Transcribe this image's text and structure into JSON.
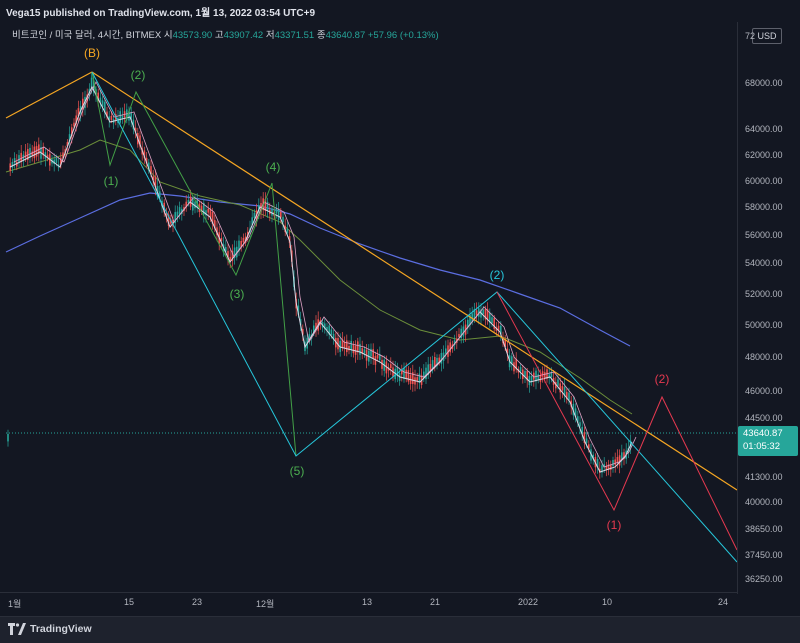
{
  "header": {
    "publisher_text": "Vega15 published on TradingView.com, 1월 13, 2022 03:54 UTC+9"
  },
  "symbol_bar": {
    "name": "비트코인 / 미국 달러, 4시간, BITMEX",
    "open_label": "시",
    "open": "43573.90",
    "high_label": "고",
    "high": "43907.42",
    "low_label": "저",
    "low": "43371.51",
    "close_label": "종",
    "close": "43640.87",
    "change": "+57.96 (+0.13%)"
  },
  "price_axis": {
    "currency": "USD",
    "ticks": [
      "72",
      "68000.00",
      "64000.00",
      "62000.00",
      "60000.00",
      "58000.00",
      "56000.00",
      "54000.00",
      "52000.00",
      "50000.00",
      "48000.00",
      "46000.00",
      "44500.00",
      "43000.00",
      "41300.00",
      "40000.00",
      "38650.00",
      "37450.00",
      "36250.00"
    ],
    "last_price": "43640.87",
    "countdown": "01:05:32"
  },
  "time_axis": {
    "ticks": [
      "1월",
      "15",
      "23",
      "12월",
      "13",
      "21",
      "2022",
      "10",
      "24"
    ]
  },
  "wave_labels": [
    "(B)",
    "(2)",
    "(1)",
    "(4)",
    "(3)",
    "(5)",
    "(2)",
    "(2)",
    "(1)"
  ],
  "footer": {
    "brand": "TradingView"
  },
  "colors": {
    "up": "#26a69a",
    "down": "#ef5350",
    "orange": "#f5a623",
    "green_wave": "#4caf50",
    "cyan_wave": "#26c6da",
    "red_wave": "#e53950",
    "ma_blue": "#5b6ee1"
  },
  "chart_data": {
    "type": "candlestick",
    "symbol": "비트코인 / 미국 달러",
    "interval": "4시간",
    "exchange": "BITMEX",
    "ylim": [
      36250,
      72000
    ],
    "key_levels": [
      {
        "date": "2021-11-10",
        "price": 69000,
        "label": "(B)"
      },
      {
        "date": "2021-11-11",
        "price": 65000,
        "label": "(1)"
      },
      {
        "date": "2021-11-16",
        "price": 66500,
        "label": "(2)"
      },
      {
        "date": "2021-11-28",
        "price": 53500,
        "label": "(3)"
      },
      {
        "date": "2021-12-01",
        "price": 59000,
        "label": "(4)"
      },
      {
        "date": "2021-12-04",
        "price": 42000,
        "label": "(5)"
      },
      {
        "date": "2021-12-27",
        "price": 52000,
        "label": "(2)"
      },
      {
        "date": "2022-01-10",
        "price": 39600,
        "label": "(1)"
      },
      {
        "date": "2022-01-17",
        "price": 45800,
        "label": "(2)"
      }
    ],
    "last": 43640.87,
    "grid": false
  }
}
